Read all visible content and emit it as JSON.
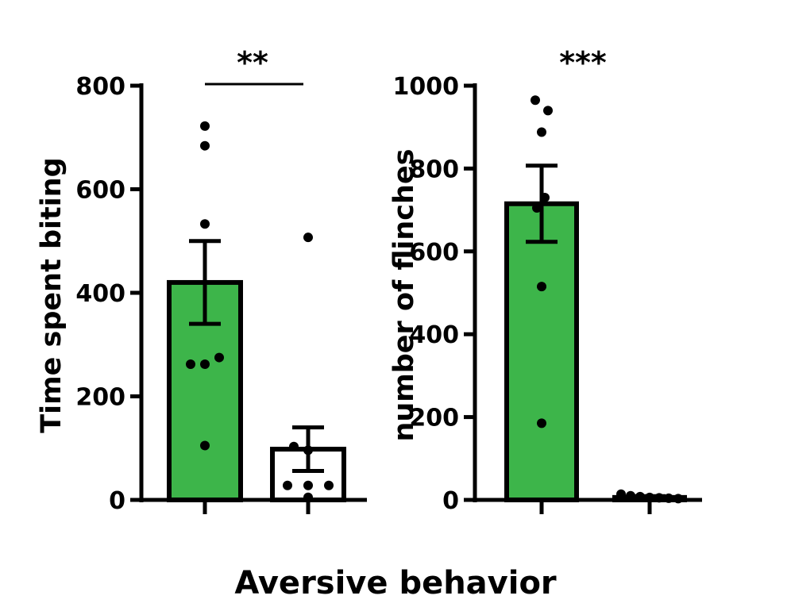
{
  "figure": {
    "xlabel": "Aversive behavior"
  },
  "chart_data": [
    {
      "type": "bar",
      "ylabel": "Time spent biting",
      "ylim": [
        0,
        800
      ],
      "yticks": [
        0,
        200,
        400,
        600,
        800
      ],
      "categories": [
        "",
        ""
      ],
      "bars": [
        {
          "mean": 420,
          "sem": 80,
          "fill": "#3db54a",
          "points": [
            722,
            684,
            533,
            262,
            262,
            275,
            105
          ]
        },
        {
          "mean": 98,
          "sem": 42,
          "fill": "#ffffff",
          "points": [
            507,
            103,
            96,
            28,
            28,
            28,
            5
          ]
        }
      ],
      "significance": "**"
    },
    {
      "type": "bar",
      "ylabel": "number of flinches",
      "ylim": [
        0,
        1000
      ],
      "yticks": [
        0,
        200,
        400,
        600,
        800,
        1000
      ],
      "categories": [
        "",
        ""
      ],
      "bars": [
        {
          "mean": 715,
          "sem": 92,
          "fill": "#3db54a",
          "points": [
            965,
            940,
            888,
            730,
            705,
            515,
            185
          ]
        },
        {
          "mean": 6,
          "sem": 3,
          "fill": "#ffffff",
          "points": [
            14,
            10,
            8,
            6,
            5,
            4,
            3
          ]
        }
      ],
      "significance": "***"
    }
  ],
  "colors": {
    "bar_green": "#3db54a",
    "stroke": "#000000"
  }
}
